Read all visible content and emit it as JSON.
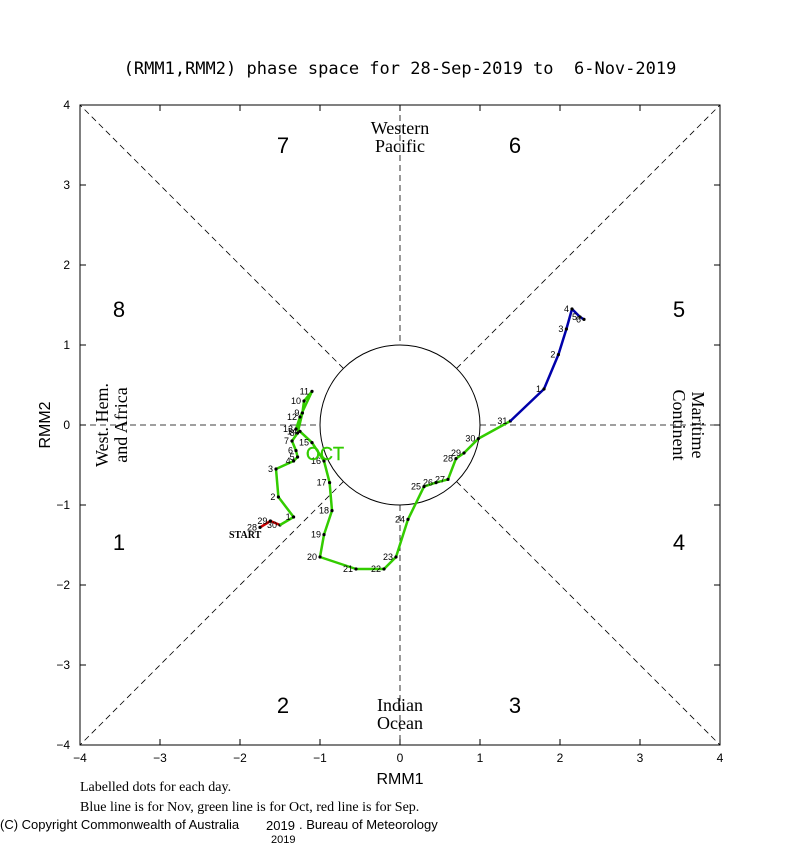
{
  "chart_data": {
    "type": "line",
    "title": "(RMM1,RMM2) phase space for 28-Sep-2019 to  6-Nov-2019",
    "xlabel": "RMM1",
    "ylabel": "RMM2",
    "xlim": [
      -4,
      4
    ],
    "ylim": [
      -4,
      4
    ],
    "xticks": [
      -4,
      -3,
      -2,
      -1,
      0,
      1,
      2,
      3,
      4
    ],
    "yticks": [
      -4,
      -3,
      -2,
      -1,
      0,
      1,
      2,
      3,
      4
    ],
    "xtick_labels": [
      "−4",
      "−3",
      "−2",
      "−1",
      "0",
      "1",
      "2",
      "3",
      "4"
    ],
    "ytick_labels": [
      "−4",
      "−3",
      "−2",
      "−1",
      "0",
      "1",
      "2",
      "3",
      "4"
    ],
    "unit_circle_radius": 1,
    "phases": [
      "1",
      "2",
      "3",
      "4",
      "5",
      "6",
      "7",
      "8"
    ],
    "region_labels": {
      "western_pacific": [
        "Western",
        "Pacific"
      ],
      "indian_ocean": [
        "Indian",
        "Ocean"
      ],
      "west_hem": [
        "West. Hem.",
        "and Africa"
      ],
      "maritime": [
        "Maritime",
        "Continent"
      ]
    },
    "month_label": "OCT",
    "start_label": "START",
    "series": [
      {
        "name": "Sep",
        "color": "#cc0000",
        "points": [
          {
            "x": -1.75,
            "y": -1.28,
            "label": "28"
          },
          {
            "x": -1.62,
            "y": -1.2,
            "label": "29"
          },
          {
            "x": -1.5,
            "y": -1.25,
            "label": "30"
          }
        ]
      },
      {
        "name": "Oct",
        "color": "#33cc00",
        "points": [
          {
            "x": -1.5,
            "y": -1.25,
            "label": ""
          },
          {
            "x": -1.33,
            "y": -1.15,
            "label": "1"
          },
          {
            "x": -1.52,
            "y": -0.9,
            "label": "2"
          },
          {
            "x": -1.55,
            "y": -0.55,
            "label": "3"
          },
          {
            "x": -1.33,
            "y": -0.45,
            "label": "4"
          },
          {
            "x": -1.28,
            "y": -0.4,
            "label": "5"
          },
          {
            "x": -1.3,
            "y": -0.32,
            "label": "6"
          },
          {
            "x": -1.35,
            "y": -0.2,
            "label": "7"
          },
          {
            "x": -1.28,
            "y": -0.1,
            "label": "8"
          },
          {
            "x": -1.22,
            "y": 0.15,
            "label": "9"
          },
          {
            "x": -1.2,
            "y": 0.3,
            "label": "10"
          },
          {
            "x": -1.1,
            "y": 0.42,
            "label": "11"
          },
          {
            "x": -1.25,
            "y": 0.1,
            "label": "12"
          },
          {
            "x": -1.3,
            "y": -0.05,
            "label": "13"
          },
          {
            "x": -1.25,
            "y": -0.08,
            "label": "14"
          },
          {
            "x": -1.1,
            "y": -0.22,
            "label": "15"
          },
          {
            "x": -0.95,
            "y": -0.45,
            "label": "16"
          },
          {
            "x": -0.88,
            "y": -0.72,
            "label": "17"
          },
          {
            "x": -0.85,
            "y": -1.07,
            "label": "18"
          },
          {
            "x": -0.95,
            "y": -1.37,
            "label": "19"
          },
          {
            "x": -1.0,
            "y": -1.65,
            "label": "20"
          },
          {
            "x": -0.55,
            "y": -1.8,
            "label": "21"
          },
          {
            "x": -0.2,
            "y": -1.8,
            "label": "22"
          },
          {
            "x": -0.05,
            "y": -1.65,
            "label": "23"
          },
          {
            "x": 0.1,
            "y": -1.18,
            "label": "24"
          },
          {
            "x": 0.3,
            "y": -0.77,
            "label": "25"
          },
          {
            "x": 0.45,
            "y": -0.72,
            "label": "26"
          },
          {
            "x": 0.6,
            "y": -0.68,
            "label": "27"
          },
          {
            "x": 0.7,
            "y": -0.42,
            "label": "28"
          },
          {
            "x": 0.8,
            "y": -0.35,
            "label": "29"
          },
          {
            "x": 0.98,
            "y": -0.17,
            "label": "30"
          },
          {
            "x": 1.38,
            "y": 0.05,
            "label": "31"
          }
        ]
      },
      {
        "name": "Nov",
        "color": "#0000aa",
        "points": [
          {
            "x": 1.38,
            "y": 0.05,
            "label": ""
          },
          {
            "x": 1.8,
            "y": 0.45,
            "label": "1"
          },
          {
            "x": 1.98,
            "y": 0.88,
            "label": "2"
          },
          {
            "x": 2.08,
            "y": 1.2,
            "label": "3"
          },
          {
            "x": 2.15,
            "y": 1.45,
            "label": "4"
          },
          {
            "x": 2.25,
            "y": 1.35,
            "label": "5"
          },
          {
            "x": 2.3,
            "y": 1.32,
            "label": "6"
          }
        ]
      }
    ]
  },
  "notes": {
    "line1": "Labelled dots for each day.",
    "line2": "Blue line is for Nov, green line is for Oct, red line is for Sep."
  },
  "copyright": {
    "text": "(C) Copyright Commonwealth of Australia",
    "year_a": "2019",
    "bureau": ". Bureau of Meteorology",
    "year_b": "2019"
  }
}
